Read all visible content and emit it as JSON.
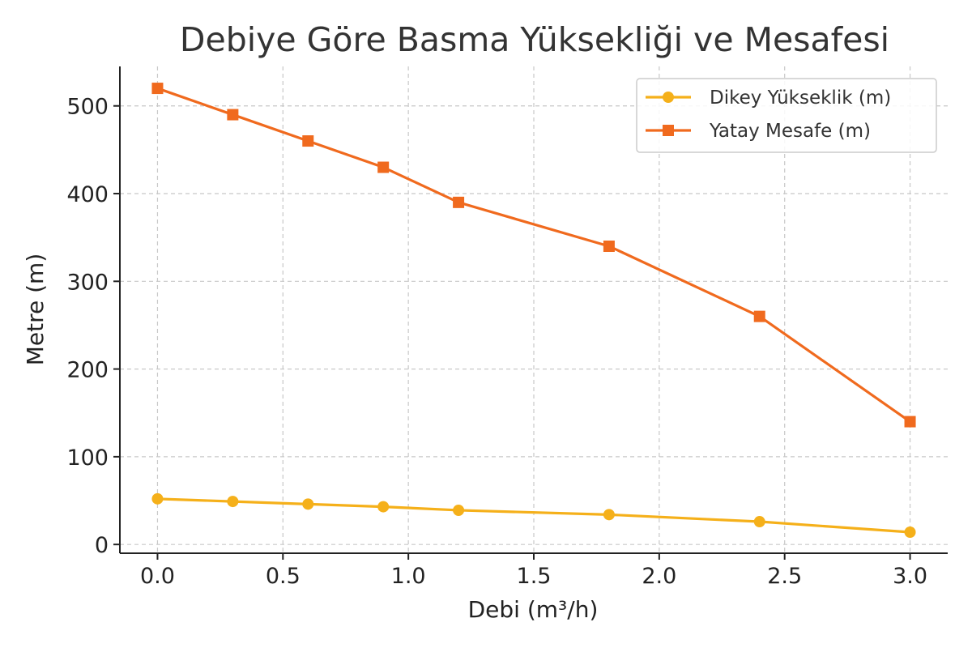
{
  "chart_data": {
    "type": "line",
    "title": "Debiye Göre Basma Yüksekliği ve Mesafesi",
    "xlabel": "Debi (m³/h)",
    "ylabel": "Metre (m)",
    "xlim": [
      -0.15,
      3.15
    ],
    "ylim": [
      -10,
      545
    ],
    "x_ticks": [
      0.0,
      0.5,
      1.0,
      1.5,
      2.0,
      2.5,
      3.0
    ],
    "x_tick_labels": [
      "0.0",
      "0.5",
      "1.0",
      "1.5",
      "2.0",
      "2.5",
      "3.0"
    ],
    "y_ticks": [
      0,
      100,
      200,
      300,
      400,
      500
    ],
    "y_tick_labels": [
      "0",
      "100",
      "200",
      "300",
      "400",
      "500"
    ],
    "grid": true,
    "legend_position": "top-right",
    "x": [
      0.0,
      0.3,
      0.6,
      0.9,
      1.2,
      1.8,
      2.4,
      3.0
    ],
    "series": [
      {
        "name": "Dikey Yükseklik (m)",
        "values": [
          52,
          49,
          46,
          43,
          39,
          34,
          26,
          14
        ],
        "color": "#F5B01A",
        "marker": "circle"
      },
      {
        "name": "Yatay Mesafe (m)",
        "values": [
          520,
          490,
          460,
          430,
          390,
          340,
          260,
          140
        ],
        "color": "#F06A1E",
        "marker": "square"
      }
    ]
  }
}
